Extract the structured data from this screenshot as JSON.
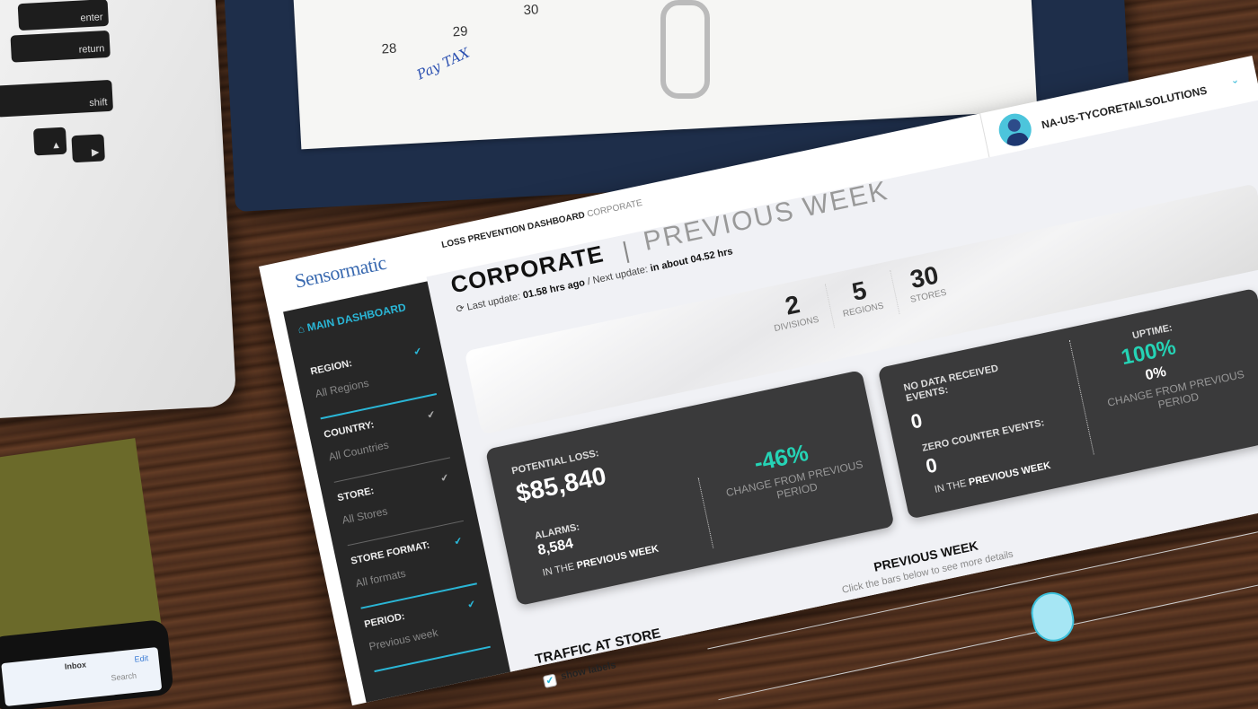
{
  "background": {
    "laptop_keys": [
      "enter",
      "return",
      "shift"
    ],
    "calendar": {
      "days": [
        "28",
        "29",
        "30"
      ],
      "note": "Pay TAX"
    },
    "phone": {
      "title": "Inbox",
      "edit": "Edit",
      "search": "Search"
    }
  },
  "app": {
    "logo": "Sensormatic",
    "breadcrumb": {
      "main": "LOSS PREVENTION DASHBOARD",
      "current": "CORPORATE"
    },
    "user": {
      "name": "NA-US-TYCORETAILSOLUTIONS",
      "icon": "user-avatar-icon"
    },
    "accent": "#2ab6d6",
    "positive": "#25d3b5"
  },
  "sidebar": {
    "main_dashboard": "MAIN DASHBOARD",
    "filters": [
      {
        "label": "REGION:",
        "value": "All Regions"
      },
      {
        "label": "COUNTRY:",
        "value": "All Countries"
      },
      {
        "label": "STORE:",
        "value": "All Stores"
      },
      {
        "label": "STORE FORMAT:",
        "value": "All formats"
      },
      {
        "label": "PERIOD:",
        "value": "Previous week"
      }
    ]
  },
  "header": {
    "title": "CORPORATE",
    "separator": "|",
    "period": "PREVIOUS WEEK",
    "last_update_label": "Last update:",
    "last_update": "01.58 hrs ago",
    "next_update_label": "/ Next update:",
    "next_update": "in about 04.52 hrs"
  },
  "stats": [
    {
      "value": "2",
      "label": "DIVISIONS"
    },
    {
      "value": "5",
      "label": "REGIONS"
    },
    {
      "value": "30",
      "label": "STORES"
    }
  ],
  "loss_card": {
    "potential_loss_label": "POTENTIAL LOSS:",
    "potential_loss": "$85,840",
    "alarms_label": "ALARMS:",
    "alarms": "8,584",
    "period_prefix": "IN THE",
    "period": "PREVIOUS WEEK",
    "change": "-46%",
    "change_label": "CHANGE FROM PREVIOUS PERIOD"
  },
  "events_card": {
    "no_data_label": "NO DATA RECEIVED EVENTS:",
    "no_data": "0",
    "zero_counter_label": "ZERO COUNTER EVENTS:",
    "zero_counter": "0",
    "period_prefix": "IN THE",
    "period": "PREVIOUS WEEK",
    "uptime_label": "UPTIME:",
    "uptime": "100%",
    "uptime_change": "0%",
    "change_label": "CHANGE FROM PREVIOUS PERIOD"
  },
  "traffic": {
    "title": "TRAFFIC AT STORE",
    "chart_title": "PREVIOUS WEEK",
    "hint": "Click the bars below to see more details",
    "show_labels": "show labels",
    "show_labels_checked": true
  }
}
